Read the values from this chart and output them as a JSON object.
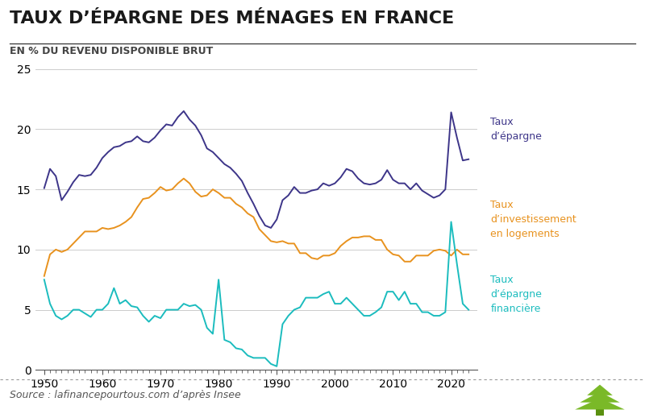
{
  "title": "TAUX D’ÉPARGNE DES MÉNAGES EN FRANCE",
  "subtitle": "EN % DU REVENU DISPONIBLE BRUT",
  "source": "Source : lafinancepourtous.com d’après Insee",
  "xlim": [
    1948.5,
    2024.5
  ],
  "ylim": [
    0,
    25
  ],
  "yticks": [
    0,
    5,
    10,
    15,
    20,
    25
  ],
  "xticks": [
    1950,
    1960,
    1970,
    1980,
    1990,
    2000,
    2010,
    2020
  ],
  "color_epargne": "#3D3589",
  "color_investissement": "#E8921E",
  "color_financiere": "#1BBCBE",
  "label_epargne": "Taux\nd’épargne",
  "label_investissement": "Taux\nd’investissement\nen logements",
  "label_financiere": "Taux\nd’épargne\nfinancière",
  "epargne_years": [
    1950,
    1951,
    1952,
    1953,
    1954,
    1955,
    1956,
    1957,
    1958,
    1959,
    1960,
    1961,
    1962,
    1963,
    1964,
    1965,
    1966,
    1967,
    1968,
    1969,
    1970,
    1971,
    1972,
    1973,
    1974,
    1975,
    1976,
    1977,
    1978,
    1979,
    1980,
    1981,
    1982,
    1983,
    1984,
    1985,
    1986,
    1987,
    1988,
    1989,
    1990,
    1991,
    1992,
    1993,
    1994,
    1995,
    1996,
    1997,
    1998,
    1999,
    2000,
    2001,
    2002,
    2003,
    2004,
    2005,
    2006,
    2007,
    2008,
    2009,
    2010,
    2011,
    2012,
    2013,
    2014,
    2015,
    2016,
    2017,
    2018,
    2019,
    2020,
    2021,
    2022,
    2023
  ],
  "epargne_values": [
    15.1,
    16.7,
    16.1,
    14.1,
    14.8,
    15.6,
    16.2,
    16.1,
    16.2,
    16.8,
    17.6,
    18.1,
    18.5,
    18.6,
    18.9,
    19.0,
    19.4,
    19.0,
    18.9,
    19.3,
    19.9,
    20.4,
    20.3,
    21.0,
    21.5,
    20.8,
    20.3,
    19.5,
    18.4,
    18.1,
    17.6,
    17.1,
    16.8,
    16.3,
    15.7,
    14.7,
    13.8,
    12.8,
    12.0,
    11.8,
    12.5,
    14.1,
    14.5,
    15.2,
    14.7,
    14.7,
    14.9,
    15.0,
    15.5,
    15.3,
    15.5,
    16.0,
    16.7,
    16.5,
    15.9,
    15.5,
    15.4,
    15.5,
    15.8,
    16.6,
    15.8,
    15.5,
    15.5,
    15.0,
    15.5,
    14.9,
    14.6,
    14.3,
    14.5,
    15.0,
    21.4,
    19.3,
    17.4,
    17.5
  ],
  "investissement_years": [
    1950,
    1951,
    1952,
    1953,
    1954,
    1955,
    1956,
    1957,
    1958,
    1959,
    1960,
    1961,
    1962,
    1963,
    1964,
    1965,
    1966,
    1967,
    1968,
    1969,
    1970,
    1971,
    1972,
    1973,
    1974,
    1975,
    1976,
    1977,
    1978,
    1979,
    1980,
    1981,
    1982,
    1983,
    1984,
    1985,
    1986,
    1987,
    1988,
    1989,
    1990,
    1991,
    1992,
    1993,
    1994,
    1995,
    1996,
    1997,
    1998,
    1999,
    2000,
    2001,
    2002,
    2003,
    2004,
    2005,
    2006,
    2007,
    2008,
    2009,
    2010,
    2011,
    2012,
    2013,
    2014,
    2015,
    2016,
    2017,
    2018,
    2019,
    2020,
    2021,
    2022,
    2023
  ],
  "investissement_values": [
    7.8,
    9.6,
    10.0,
    9.8,
    10.0,
    10.5,
    11.0,
    11.5,
    11.5,
    11.5,
    11.8,
    11.7,
    11.8,
    12.0,
    12.3,
    12.7,
    13.5,
    14.2,
    14.3,
    14.7,
    15.2,
    14.9,
    15.0,
    15.5,
    15.9,
    15.5,
    14.8,
    14.4,
    14.5,
    15.0,
    14.7,
    14.3,
    14.3,
    13.8,
    13.5,
    13.0,
    12.7,
    11.7,
    11.2,
    10.7,
    10.6,
    10.7,
    10.5,
    10.5,
    9.7,
    9.7,
    9.3,
    9.2,
    9.5,
    9.5,
    9.7,
    10.3,
    10.7,
    11.0,
    11.0,
    11.1,
    11.1,
    10.8,
    10.8,
    10.0,
    9.6,
    9.5,
    9.0,
    9.0,
    9.5,
    9.5,
    9.5,
    9.9,
    10.0,
    9.9,
    9.5,
    10.0,
    9.6,
    9.6
  ],
  "financiere_years": [
    1950,
    1951,
    1952,
    1953,
    1954,
    1955,
    1956,
    1957,
    1958,
    1959,
    1960,
    1961,
    1962,
    1963,
    1964,
    1965,
    1966,
    1967,
    1968,
    1969,
    1970,
    1971,
    1972,
    1973,
    1974,
    1975,
    1976,
    1977,
    1978,
    1979,
    1980,
    1981,
    1982,
    1983,
    1984,
    1985,
    1986,
    1987,
    1988,
    1989,
    1990,
    1991,
    1992,
    1993,
    1994,
    1995,
    1996,
    1997,
    1998,
    1999,
    2000,
    2001,
    2002,
    2003,
    2004,
    2005,
    2006,
    2007,
    2008,
    2009,
    2010,
    2011,
    2012,
    2013,
    2014,
    2015,
    2016,
    2017,
    2018,
    2019,
    2020,
    2021,
    2022,
    2023
  ],
  "financiere_values": [
    7.5,
    5.5,
    4.5,
    4.2,
    4.5,
    5.0,
    5.0,
    4.7,
    4.4,
    5.0,
    5.0,
    5.5,
    6.8,
    5.5,
    5.8,
    5.3,
    5.2,
    4.5,
    4.0,
    4.5,
    4.3,
    5.0,
    5.0,
    5.0,
    5.5,
    5.3,
    5.4,
    5.0,
    3.5,
    3.0,
    7.5,
    2.5,
    2.3,
    1.8,
    1.7,
    1.2,
    1.0,
    1.0,
    1.0,
    0.5,
    0.3,
    3.8,
    4.5,
    5.0,
    5.2,
    6.0,
    6.0,
    6.0,
    6.3,
    6.5,
    5.5,
    5.5,
    6.0,
    5.5,
    5.0,
    4.5,
    4.5,
    4.8,
    5.2,
    6.5,
    6.5,
    5.8,
    6.5,
    5.5,
    5.5,
    4.8,
    4.8,
    4.5,
    4.5,
    4.8,
    12.3,
    8.8,
    5.5,
    5.0
  ],
  "background_color": "#FFFFFF",
  "title_fontsize": 16,
  "subtitle_fontsize": 9,
  "tick_fontsize": 10,
  "label_fontsize": 9,
  "source_fontsize": 9
}
